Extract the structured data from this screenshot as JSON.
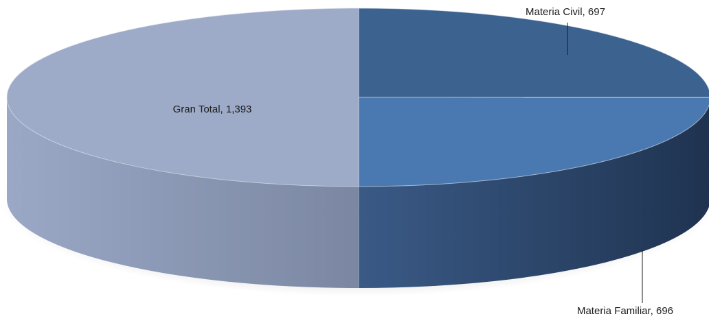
{
  "chart_data": {
    "type": "pie",
    "title": "",
    "labels": [
      "Materia Civil",
      "Materia Familiar",
      "Gran Total"
    ],
    "values": [
      697,
      696,
      1393
    ],
    "data_labels": [
      "Materia Civil, 697",
      "Materia Familiar, 696",
      "Gran Total, 1,393"
    ],
    "colors": [
      "#3c628f",
      "#4a78b0",
      "#9eabc8"
    ],
    "legend": "none",
    "style": "3d"
  }
}
